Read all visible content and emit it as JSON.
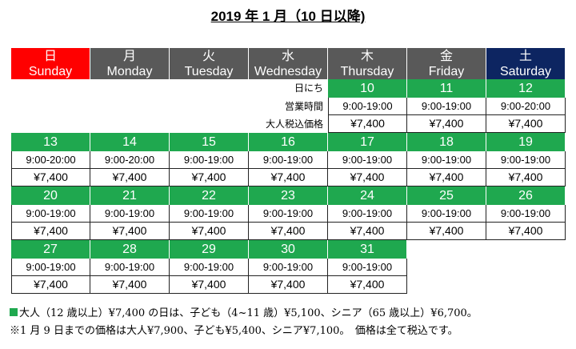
{
  "title": "2019 年 1 月（10 日以降)",
  "days": [
    {
      "jp": "日",
      "en": "Sunday",
      "color": "#ff0000"
    },
    {
      "jp": "月",
      "en": "Monday",
      "color": "#595959"
    },
    {
      "jp": "火",
      "en": "Tuesday",
      "color": "#595959"
    },
    {
      "jp": "水",
      "en": "Wednesday",
      "color": "#595959"
    },
    {
      "jp": "木",
      "en": "Thursday",
      "color": "#595959"
    },
    {
      "jp": "金",
      "en": "Friday",
      "color": "#595959"
    },
    {
      "jp": "土",
      "en": "Saturday",
      "color": "#0d2561"
    }
  ],
  "row_labels": {
    "date": "日にち",
    "hours": "営業時間",
    "price": "大人税込価格"
  },
  "weeks": [
    [
      null,
      null,
      null,
      null,
      {
        "d": "10",
        "h": "9:00-19:00",
        "p": "¥7,400"
      },
      {
        "d": "11",
        "h": "9:00-19:00",
        "p": "¥7,400"
      },
      {
        "d": "12",
        "h": "9:00-20:00",
        "p": "¥7,400"
      }
    ],
    [
      {
        "d": "13",
        "h": "9:00-20:00",
        "p": "¥7,400"
      },
      {
        "d": "14",
        "h": "9:00-20:00",
        "p": "¥7,400"
      },
      {
        "d": "15",
        "h": "9:00-19:00",
        "p": "¥7,400"
      },
      {
        "d": "16",
        "h": "9:00-19:00",
        "p": "¥7,400"
      },
      {
        "d": "17",
        "h": "9:00-19:00",
        "p": "¥7,400"
      },
      {
        "d": "18",
        "h": "9:00-19:00",
        "p": "¥7,400"
      },
      {
        "d": "19",
        "h": "9:00-19:00",
        "p": "¥7,400"
      }
    ],
    [
      {
        "d": "20",
        "h": "9:00-19:00",
        "p": "¥7,400"
      },
      {
        "d": "21",
        "h": "9:00-19:00",
        "p": "¥7,400"
      },
      {
        "d": "22",
        "h": "9:00-19:00",
        "p": "¥7,400"
      },
      {
        "d": "23",
        "h": "9:00-19:00",
        "p": "¥7,400"
      },
      {
        "d": "24",
        "h": "9:00-19:00",
        "p": "¥7,400"
      },
      {
        "d": "25",
        "h": "9:00-19:00",
        "p": "¥7,400"
      },
      {
        "d": "26",
        "h": "9:00-19:00",
        "p": "¥7,400"
      }
    ],
    [
      {
        "d": "27",
        "h": "9:00-19:00",
        "p": "¥7,400"
      },
      {
        "d": "28",
        "h": "9:00-19:00",
        "p": "¥7,400"
      },
      {
        "d": "29",
        "h": "9:00-19:00",
        "p": "¥7,400"
      },
      {
        "d": "30",
        "h": "9:00-19:00",
        "p": "¥7,400"
      },
      {
        "d": "31",
        "h": "9:00-19:00",
        "p": "¥7,400"
      },
      null,
      null
    ]
  ],
  "notes": {
    "line1": "大人（12 歳以上）¥7,400 の日は、子ども（4~11 歳）¥5,100、シニア（65 歳以上）¥6,700。",
    "line2": "※1 月 9 日までの価格は大人¥7,900、子ども¥5,400、シニア¥7,100。　価格は全て税込です。"
  },
  "colors": {
    "green": "#1fa84f",
    "sunday": "#ff0000",
    "saturday": "#0d2561",
    "weekday": "#595959"
  }
}
